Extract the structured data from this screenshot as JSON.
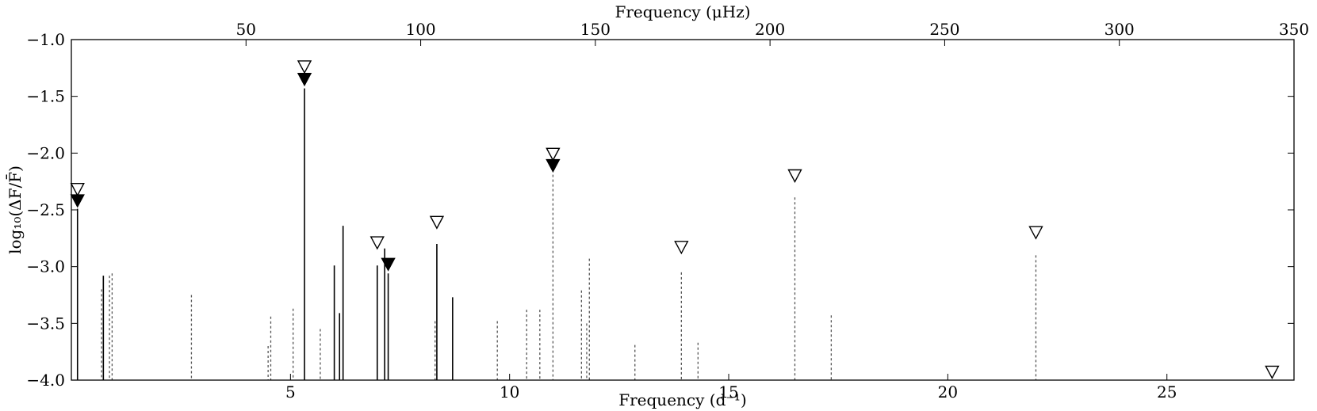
{
  "chart_data": {
    "type": "stem",
    "title": "",
    "xlabel_bottom": "Frequency (d⁻¹)",
    "xlabel_top": "Frequency (μHz)",
    "ylabel": "log₁₀(ΔF/F̄)",
    "xlim_bottom": [
      0,
      27.9
    ],
    "xlim_top": [
      0,
      350
    ],
    "ylim": [
      -4.0,
      -1.0
    ],
    "x_ticks_bottom": [
      5,
      10,
      15,
      20,
      25
    ],
    "x_ticks_top": [
      50,
      100,
      150,
      200,
      250,
      300,
      350
    ],
    "y_ticks": [
      -1.0,
      -1.5,
      -2.0,
      -2.5,
      -3.0,
      -3.5,
      -4.0
    ],
    "y_tick_labels": [
      "−1.0",
      "−1.5",
      "−2.0",
      "−2.5",
      "−3.0",
      "−3.5",
      "−4.0"
    ],
    "grid": false,
    "series": [
      {
        "style": "solid",
        "points": [
          {
            "x": 0.14,
            "y": -2.49
          },
          {
            "x": 0.73,
            "y": -3.08
          },
          {
            "x": 5.32,
            "y": -1.43
          },
          {
            "x": 6.0,
            "y": -2.99
          },
          {
            "x": 6.12,
            "y": -3.41
          },
          {
            "x": 6.2,
            "y": -2.64
          },
          {
            "x": 6.98,
            "y": -2.99
          },
          {
            "x": 7.15,
            "y": -2.84
          },
          {
            "x": 7.23,
            "y": -3.06
          },
          {
            "x": 8.34,
            "y": -2.8
          },
          {
            "x": 8.7,
            "y": -3.27
          }
        ]
      },
      {
        "style": "dashed",
        "points": [
          {
            "x": 0.69,
            "y": -3.2
          },
          {
            "x": 0.87,
            "y": -3.08
          },
          {
            "x": 0.93,
            "y": -3.06
          },
          {
            "x": 2.74,
            "y": -3.25
          },
          {
            "x": 4.49,
            "y": -3.7
          },
          {
            "x": 4.55,
            "y": -3.44
          },
          {
            "x": 5.06,
            "y": -3.37
          },
          {
            "x": 5.68,
            "y": -3.55
          },
          {
            "x": 8.3,
            "y": -3.48
          },
          {
            "x": 9.72,
            "y": -3.48
          },
          {
            "x": 10.39,
            "y": -3.38
          },
          {
            "x": 10.69,
            "y": -3.38
          },
          {
            "x": 10.99,
            "y": -2.19
          },
          {
            "x": 11.64,
            "y": -3.21
          },
          {
            "x": 11.76,
            "y": -3.5
          },
          {
            "x": 11.82,
            "y": -2.93
          },
          {
            "x": 12.86,
            "y": -3.69
          },
          {
            "x": 13.92,
            "y": -3.05
          },
          {
            "x": 14.3,
            "y": -3.67
          },
          {
            "x": 16.51,
            "y": -2.39
          },
          {
            "x": 17.34,
            "y": -3.43
          },
          {
            "x": 22.01,
            "y": -2.9
          }
        ]
      }
    ],
    "markers": [
      {
        "shape": "open-triangle-down",
        "x": 0.14,
        "y": -2.32
      },
      {
        "shape": "filled-triangle-down",
        "x": 0.14,
        "y": -2.42
      },
      {
        "shape": "open-triangle-down",
        "x": 5.32,
        "y": -1.24
      },
      {
        "shape": "filled-triangle-down",
        "x": 5.32,
        "y": -1.35
      },
      {
        "shape": "open-triangle-down",
        "x": 6.98,
        "y": -2.79
      },
      {
        "shape": "filled-triangle-down",
        "x": 7.23,
        "y": -2.98
      },
      {
        "shape": "open-triangle-down",
        "x": 8.34,
        "y": -2.61
      },
      {
        "shape": "open-triangle-down",
        "x": 10.99,
        "y": -2.01
      },
      {
        "shape": "filled-triangle-down",
        "x": 10.99,
        "y": -2.11
      },
      {
        "shape": "open-triangle-down",
        "x": 13.92,
        "y": -2.83
      },
      {
        "shape": "open-triangle-down",
        "x": 16.51,
        "y": -2.2
      },
      {
        "shape": "open-triangle-down",
        "x": 22.01,
        "y": -2.7
      },
      {
        "shape": "open-triangle-down",
        "x": 27.4,
        "y": -3.93
      }
    ],
    "colors": {
      "solid": "#000000",
      "dashed": "#555555",
      "marker": "#000000"
    }
  }
}
